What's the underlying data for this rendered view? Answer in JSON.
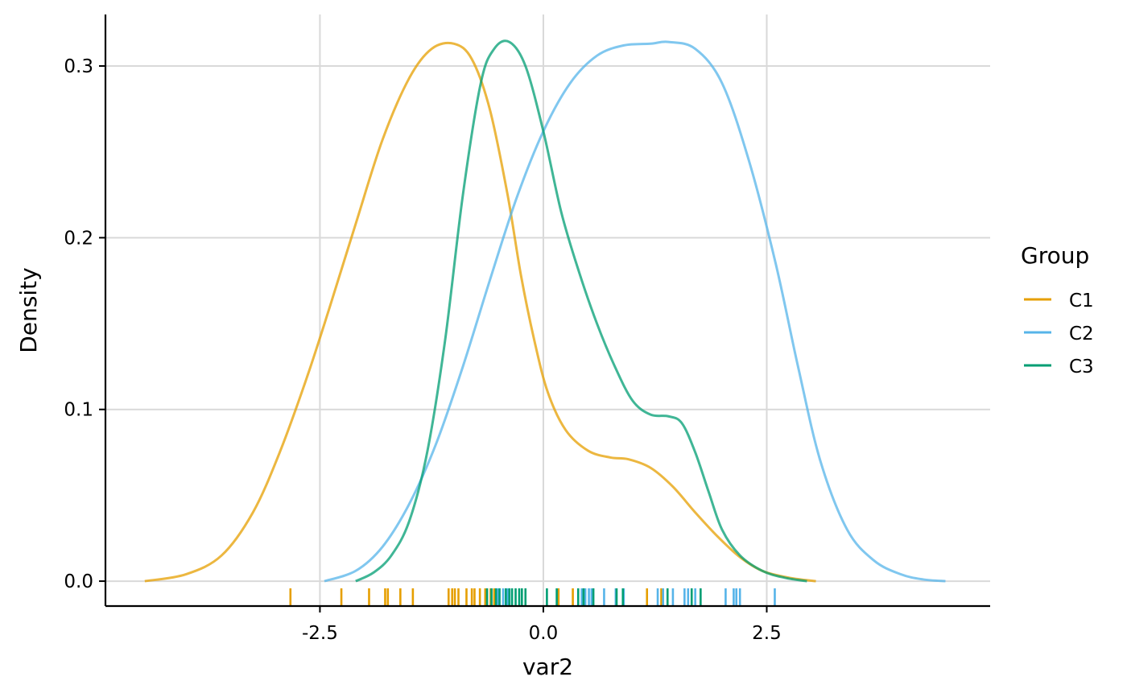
{
  "chart_data": {
    "type": "density",
    "title": "",
    "xlabel": "var2",
    "ylabel": "Density",
    "xlim": [
      -4.9,
      5.0
    ],
    "ylim": [
      -0.0145,
      0.33
    ],
    "xticks": [
      -2.5,
      0.0,
      2.5
    ],
    "xtick_labels": [
      "-2.5",
      "0.0",
      "2.5"
    ],
    "yticks": [
      0.0,
      0.1,
      0.2,
      0.3
    ],
    "ytick_labels": [
      "0.0",
      "0.1",
      "0.2",
      "0.3"
    ],
    "grid": true,
    "legend": {
      "title": "Group",
      "position": "right",
      "entries": [
        "C1",
        "C2",
        "C3"
      ]
    },
    "series": [
      {
        "name": "C1",
        "color": "#E69F00",
        "points": [
          [
            -4.46,
            0.0
          ],
          [
            -4.0,
            0.004
          ],
          [
            -3.6,
            0.015
          ],
          [
            -3.25,
            0.04
          ],
          [
            -2.95,
            0.075
          ],
          [
            -2.65,
            0.118
          ],
          [
            -2.4,
            0.158
          ],
          [
            -2.1,
            0.208
          ],
          [
            -1.8,
            0.257
          ],
          [
            -1.5,
            0.293
          ],
          [
            -1.25,
            0.31
          ],
          [
            -1.0,
            0.313
          ],
          [
            -0.8,
            0.304
          ],
          [
            -0.6,
            0.275
          ],
          [
            -0.4,
            0.225
          ],
          [
            -0.25,
            0.178
          ],
          [
            -0.1,
            0.14
          ],
          [
            0.05,
            0.11
          ],
          [
            0.25,
            0.088
          ],
          [
            0.5,
            0.076
          ],
          [
            0.75,
            0.072
          ],
          [
            0.95,
            0.071
          ],
          [
            1.2,
            0.066
          ],
          [
            1.45,
            0.055
          ],
          [
            1.7,
            0.04
          ],
          [
            1.95,
            0.026
          ],
          [
            2.2,
            0.014
          ],
          [
            2.45,
            0.006
          ],
          [
            2.75,
            0.002
          ],
          [
            3.05,
            0.0
          ]
        ],
        "rug": [
          -2.83,
          -2.26,
          -1.95,
          -1.77,
          -1.74,
          -1.6,
          -1.46,
          -1.06,
          -1.02,
          -0.99,
          -0.95,
          -0.86,
          -0.8,
          -0.77,
          -0.71,
          -0.65,
          -0.63,
          -0.59,
          -0.55,
          0.17,
          0.33,
          1.16,
          1.32
        ]
      },
      {
        "name": "C2",
        "color": "#56B4E9",
        "points": [
          [
            -2.45,
            0.0
          ],
          [
            -2.1,
            0.006
          ],
          [
            -1.8,
            0.02
          ],
          [
            -1.5,
            0.045
          ],
          [
            -1.2,
            0.08
          ],
          [
            -0.9,
            0.125
          ],
          [
            -0.6,
            0.175
          ],
          [
            -0.3,
            0.223
          ],
          [
            0.0,
            0.262
          ],
          [
            0.3,
            0.29
          ],
          [
            0.6,
            0.306
          ],
          [
            0.9,
            0.312
          ],
          [
            1.2,
            0.313
          ],
          [
            1.4,
            0.314
          ],
          [
            1.7,
            0.31
          ],
          [
            2.0,
            0.29
          ],
          [
            2.3,
            0.245
          ],
          [
            2.6,
            0.185
          ],
          [
            2.85,
            0.125
          ],
          [
            3.1,
            0.07
          ],
          [
            3.4,
            0.03
          ],
          [
            3.7,
            0.012
          ],
          [
            4.0,
            0.004
          ],
          [
            4.25,
            0.001
          ],
          [
            4.5,
            0.0
          ]
        ],
        "rug": [
          -0.51,
          -0.45,
          -0.4,
          0.43,
          0.47,
          0.51,
          0.54,
          0.68,
          0.81,
          0.9,
          1.28,
          1.34,
          1.45,
          1.58,
          1.62,
          1.7,
          2.04,
          2.13,
          2.16,
          2.2,
          2.59
        ]
      },
      {
        "name": "C3",
        "color": "#009E73",
        "points": [
          [
            -2.1,
            0.0
          ],
          [
            -1.9,
            0.005
          ],
          [
            -1.7,
            0.015
          ],
          [
            -1.5,
            0.035
          ],
          [
            -1.3,
            0.075
          ],
          [
            -1.1,
            0.14
          ],
          [
            -0.9,
            0.225
          ],
          [
            -0.7,
            0.29
          ],
          [
            -0.55,
            0.31
          ],
          [
            -0.38,
            0.314
          ],
          [
            -0.2,
            0.3
          ],
          [
            0.0,
            0.262
          ],
          [
            0.2,
            0.215
          ],
          [
            0.4,
            0.18
          ],
          [
            0.6,
            0.15
          ],
          [
            0.8,
            0.125
          ],
          [
            1.0,
            0.105
          ],
          [
            1.2,
            0.097
          ],
          [
            1.4,
            0.096
          ],
          [
            1.55,
            0.092
          ],
          [
            1.7,
            0.075
          ],
          [
            1.85,
            0.052
          ],
          [
            2.0,
            0.03
          ],
          [
            2.2,
            0.015
          ],
          [
            2.45,
            0.006
          ],
          [
            2.7,
            0.002
          ],
          [
            2.95,
            0.0
          ]
        ],
        "rug": [
          -0.63,
          -0.58,
          -0.53,
          -0.49,
          -0.42,
          -0.38,
          -0.35,
          -0.31,
          -0.27,
          -0.24,
          -0.2,
          0.04,
          0.15,
          0.39,
          0.45,
          0.56,
          0.82,
          0.89,
          1.39,
          1.66,
          1.76
        ]
      }
    ]
  }
}
